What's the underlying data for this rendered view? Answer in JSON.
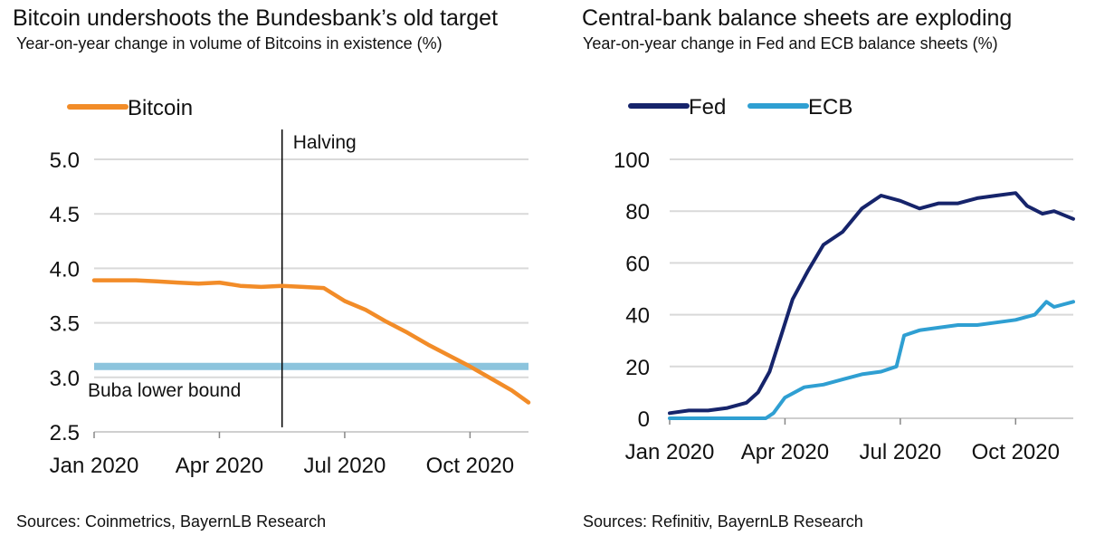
{
  "left": {
    "title": "Bitcoin undershoots the Bundesbank’s old target",
    "subtitle": "Year-on-year change in volume of Bitcoins in existence (%)",
    "source": "Sources: Coinmetrics, BayernLB Research"
  },
  "right": {
    "title": "Central-bank balance sheets are exploding",
    "subtitle": "Year-on-year change in Fed and ECB balance sheets (%)",
    "source": "Sources: Refinitiv, BayernLB Research"
  },
  "colors": {
    "bitcoin": "#f28c28",
    "buba": "#8cc4dd",
    "fed": "#16246b",
    "ecb": "#2f9fd2",
    "grid": "#d9d9d9"
  },
  "chart_data": [
    {
      "type": "line",
      "title": "Bitcoin undershoots the Bundesbank’s old target",
      "ylabel": "Year-on-year change in volume of Bitcoins in existence (%)",
      "ylim": [
        2.5,
        5.0
      ],
      "yticks": [
        2.5,
        3.0,
        3.5,
        4.0,
        4.5,
        5.0
      ],
      "ytick_labels": [
        "2.5",
        "3.0",
        "3.5",
        "4.0",
        "4.5",
        "5.0"
      ],
      "xlim": [
        0,
        10.4
      ],
      "xticks": [
        0,
        3,
        6,
        9
      ],
      "xtick_labels": [
        "Jan 2020",
        "Apr 2020",
        "Jul 2020",
        "Oct 2020"
      ],
      "grid": true,
      "legend": "top-left",
      "series": [
        {
          "name": "Bitcoin",
          "x": [
            0,
            0.5,
            1.0,
            1.5,
            2.0,
            2.5,
            3.0,
            3.5,
            4.0,
            4.5,
            5.0,
            5.5,
            6.0,
            6.5,
            7.0,
            7.5,
            8.0,
            8.5,
            9.0,
            9.5,
            10.0,
            10.4
          ],
          "values": [
            3.89,
            3.89,
            3.89,
            3.88,
            3.87,
            3.86,
            3.87,
            3.84,
            3.83,
            3.84,
            3.83,
            3.82,
            3.7,
            3.62,
            3.51,
            3.41,
            3.3,
            3.2,
            3.1,
            2.99,
            2.88,
            2.77
          ]
        }
      ],
      "reference_line": {
        "label": "Buba lower bound",
        "y": 3.1
      },
      "event_marker": {
        "label": "Halving",
        "x": 4.5
      }
    },
    {
      "type": "line",
      "title": "Central-bank balance sheets are exploding",
      "ylabel": "Year-on-year change in Fed and ECB balance sheets (%)",
      "ylim": [
        0,
        100
      ],
      "yticks": [
        0,
        20,
        40,
        60,
        80,
        100
      ],
      "ytick_labels": [
        "0",
        "20",
        "40",
        "60",
        "80",
        "100"
      ],
      "xlim": [
        0,
        10.5
      ],
      "xticks": [
        0,
        3,
        6,
        9
      ],
      "xtick_labels": [
        "Jan 2020",
        "Apr 2020",
        "Jul 2020",
        "Oct 2020"
      ],
      "grid": true,
      "legend": "top-left",
      "series": [
        {
          "name": "Fed",
          "x": [
            0,
            0.5,
            1.0,
            1.5,
            2.0,
            2.3,
            2.6,
            2.9,
            3.2,
            3.6,
            4.0,
            4.5,
            5.0,
            5.5,
            6.0,
            6.5,
            7.0,
            7.5,
            8.0,
            8.5,
            9.0,
            9.3,
            9.7,
            10.0,
            10.5
          ],
          "values": [
            2,
            3,
            3,
            4,
            6,
            10,
            18,
            32,
            46,
            57,
            67,
            72,
            81,
            86,
            84,
            81,
            83,
            83,
            85,
            86,
            87,
            82,
            79,
            80,
            77
          ]
        },
        {
          "name": "ECB",
          "x": [
            0,
            1.0,
            2.0,
            2.5,
            2.7,
            3.0,
            3.5,
            4.0,
            4.5,
            5.0,
            5.5,
            5.9,
            6.1,
            6.5,
            7.0,
            7.5,
            8.0,
            8.5,
            9.0,
            9.5,
            9.8,
            10.0,
            10.5
          ],
          "values": [
            0,
            0,
            0,
            0,
            2,
            8,
            12,
            13,
            15,
            17,
            18,
            20,
            32,
            34,
            35,
            36,
            36,
            37,
            38,
            40,
            45,
            43,
            45
          ]
        }
      ]
    }
  ]
}
